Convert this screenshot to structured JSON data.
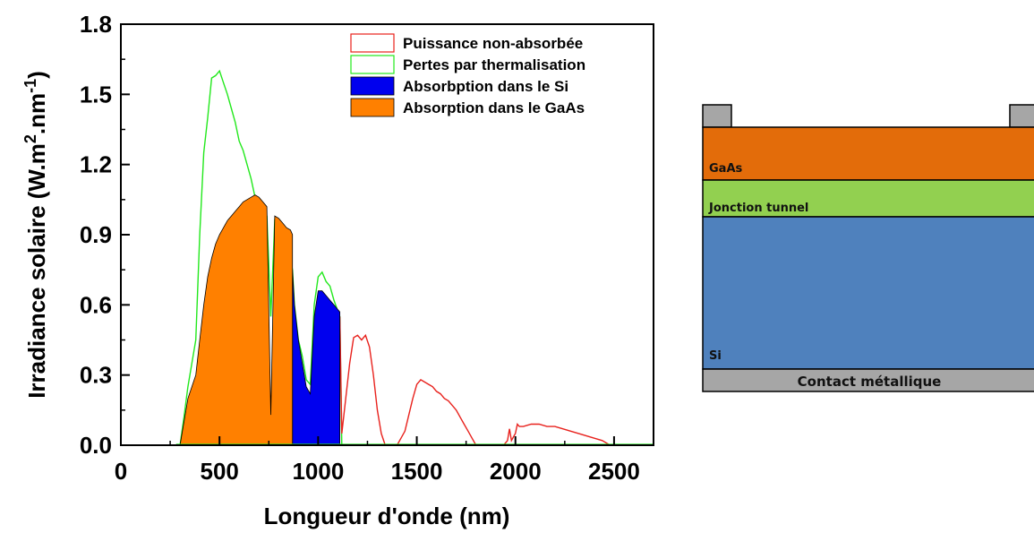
{
  "chart_data": {
    "type": "area",
    "xlabel": "Longueur d'onde (nm)",
    "ylabel_parts": {
      "pre": "Irradiance solaire (W.m",
      "sup1": "2",
      "mid": ".nm",
      "sup2": "-1",
      "post": ")"
    },
    "xlim": [
      0,
      2700
    ],
    "ylim": [
      0,
      1.8
    ],
    "x_ticks": [
      "0",
      "500",
      "1000",
      "1500",
      "2000",
      "2500"
    ],
    "y_ticks": [
      "0.0",
      "0.3",
      "0.6",
      "0.9",
      "1.2",
      "1.5",
      "1.8"
    ],
    "legend_position": "top-right",
    "legend": [
      {
        "label": "Puissance non-absorbée",
        "color": "#e8211c",
        "style": "line"
      },
      {
        "label": "Pertes par thermalisation",
        "color": "#22e81c",
        "style": "line"
      },
      {
        "label": "Absorbption dans le Si",
        "color": "#0000ee",
        "style": "fill"
      },
      {
        "label": "Absorption dans le GaAs",
        "color": "#ff8000",
        "style": "fill"
      }
    ],
    "series": [
      {
        "name": "Pertes par thermalisation",
        "color": "#22e81c",
        "x": [
          280,
          300,
          320,
          340,
          360,
          380,
          400,
          420,
          440,
          460,
          480,
          500,
          520,
          540,
          560,
          580,
          600,
          620,
          640,
          660,
          680,
          700,
          720,
          740,
          760,
          780,
          800,
          820,
          840,
          870,
          880,
          900,
          920,
          940,
          960,
          980,
          1000,
          1020,
          1040,
          1060,
          1080,
          1110,
          1120,
          2700
        ],
        "y": [
          0.0,
          0.0,
          0.12,
          0.25,
          0.35,
          0.45,
          0.9,
          1.25,
          1.4,
          1.57,
          1.58,
          1.6,
          1.55,
          1.5,
          1.44,
          1.38,
          1.3,
          1.26,
          1.2,
          1.14,
          1.06,
          1.04,
          1.0,
          0.98,
          0.55,
          0.96,
          0.94,
          0.92,
          0.9,
          0.75,
          0.6,
          0.45,
          0.38,
          0.28,
          0.26,
          0.6,
          0.72,
          0.74,
          0.7,
          0.68,
          0.62,
          0.55,
          0.0,
          0.0
        ]
      },
      {
        "name": "Puissance non-absorbée",
        "color": "#e8211c",
        "x": [
          1110,
          1120,
          1140,
          1160,
          1180,
          1200,
          1220,
          1240,
          1260,
          1280,
          1300,
          1320,
          1340,
          1360,
          1380,
          1400,
          1420,
          1440,
          1460,
          1480,
          1500,
          1520,
          1540,
          1560,
          1580,
          1600,
          1620,
          1640,
          1660,
          1680,
          1700,
          1720,
          1740,
          1760,
          1780,
          1800,
          1820,
          1900,
          1940,
          1960,
          1970,
          1980,
          2000,
          2010,
          2020,
          2040,
          2080,
          2120,
          2160,
          2200,
          2240,
          2280,
          2320,
          2360,
          2400,
          2440,
          2460,
          2480,
          2700
        ],
        "y": [
          0.55,
          0.05,
          0.2,
          0.35,
          0.46,
          0.47,
          0.45,
          0.47,
          0.42,
          0.3,
          0.15,
          0.05,
          0.0,
          0.0,
          0.0,
          0.0,
          0.03,
          0.06,
          0.13,
          0.2,
          0.26,
          0.28,
          0.27,
          0.26,
          0.25,
          0.23,
          0.22,
          0.2,
          0.19,
          0.17,
          0.15,
          0.12,
          0.09,
          0.06,
          0.03,
          0.0,
          0.0,
          0.0,
          0.0,
          0.02,
          0.07,
          0.02,
          0.05,
          0.09,
          0.08,
          0.08,
          0.09,
          0.09,
          0.08,
          0.08,
          0.07,
          0.06,
          0.05,
          0.04,
          0.03,
          0.02,
          0.01,
          0.0,
          0.0
        ]
      },
      {
        "name": "Absorption dans le GaAs",
        "color": "#ff8000",
        "x": [
          300,
          320,
          340,
          360,
          380,
          400,
          420,
          440,
          460,
          480,
          500,
          520,
          540,
          560,
          580,
          600,
          620,
          640,
          660,
          680,
          700,
          720,
          740,
          760,
          780,
          800,
          820,
          840,
          860,
          870
        ],
        "y": [
          0.0,
          0.1,
          0.2,
          0.25,
          0.3,
          0.45,
          0.6,
          0.72,
          0.8,
          0.86,
          0.9,
          0.93,
          0.96,
          0.98,
          1.0,
          1.02,
          1.04,
          1.05,
          1.06,
          1.07,
          1.06,
          1.04,
          1.02,
          0.13,
          0.98,
          0.97,
          0.95,
          0.93,
          0.92,
          0.9
        ]
      },
      {
        "name": "Absorbption dans le Si",
        "color": "#0000ee",
        "x": [
          870,
          880,
          900,
          920,
          940,
          960,
          980,
          1000,
          1020,
          1040,
          1060,
          1080,
          1100,
          1110
        ],
        "y": [
          0.75,
          0.6,
          0.45,
          0.35,
          0.25,
          0.22,
          0.55,
          0.66,
          0.66,
          0.64,
          0.62,
          0.6,
          0.58,
          0.57
        ]
      }
    ]
  },
  "diagram": {
    "layers": [
      {
        "label": "GaAs",
        "color": "#e36c0a"
      },
      {
        "label": "Jonction tunnel",
        "color": "#92d050"
      },
      {
        "label": "Si",
        "color": "#4f81bd"
      }
    ],
    "contact_label": "Contact métallique",
    "contact_color": "#a6a6a6"
  }
}
